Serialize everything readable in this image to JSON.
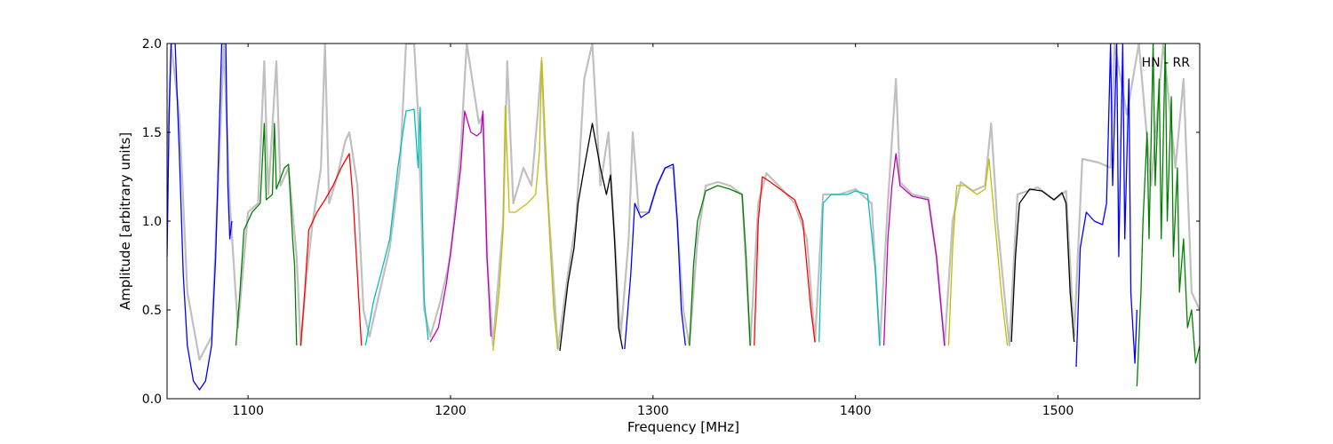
{
  "chart_data": {
    "type": "line",
    "title": "",
    "annotation": "HN - RR",
    "xlabel": "Frequency [MHz]",
    "ylabel": "Amplitude [arbitrary units]",
    "xlim": [
      1060,
      1570
    ],
    "ylim": [
      0,
      2.0
    ],
    "grid": false,
    "x_ticks": [
      1100,
      1200,
      1300,
      1400,
      1500
    ],
    "x_tick_labels": [
      "1100",
      "1200",
      "1300",
      "1400",
      "1500"
    ],
    "y_ticks": [
      0.0,
      0.5,
      1.0,
      1.5,
      2.0
    ],
    "y_tick_labels": [
      "0.0",
      "0.5",
      "1.0",
      "1.5",
      "2.0"
    ],
    "background_color": "#c0c0c0",
    "background": [
      [
        1060,
        1.25
      ],
      [
        1062,
        2.0
      ],
      [
        1066,
        1.6
      ],
      [
        1070,
        0.6
      ],
      [
        1076,
        0.22
      ],
      [
        1082,
        0.35
      ],
      [
        1086,
        1.4
      ],
      [
        1088,
        2.0
      ],
      [
        1091,
        1.1
      ],
      [
        1095,
        0.4
      ],
      [
        1100,
        1.05
      ],
      [
        1105,
        1.1
      ],
      [
        1108,
        1.9
      ],
      [
        1110,
        1.15
      ],
      [
        1114,
        1.9
      ],
      [
        1116,
        1.2
      ],
      [
        1120,
        1.3
      ],
      [
        1124,
        0.8
      ],
      [
        1126,
        0.3
      ],
      [
        1129,
        0.7
      ],
      [
        1132,
        1.0
      ],
      [
        1136,
        1.3
      ],
      [
        1138,
        2.0
      ],
      [
        1140,
        1.1
      ],
      [
        1144,
        1.25
      ],
      [
        1148,
        1.45
      ],
      [
        1150,
        1.5
      ],
      [
        1154,
        1.2
      ],
      [
        1157,
        0.5
      ],
      [
        1160,
        0.35
      ],
      [
        1165,
        0.6
      ],
      [
        1170,
        0.85
      ],
      [
        1175,
        1.3
      ],
      [
        1178,
        2.0
      ],
      [
        1182,
        2.0
      ],
      [
        1184,
        1.6
      ],
      [
        1187,
        0.5
      ],
      [
        1190,
        0.35
      ],
      [
        1195,
        0.55
      ],
      [
        1200,
        0.8
      ],
      [
        1205,
        1.4
      ],
      [
        1208,
        2.0
      ],
      [
        1212,
        1.7
      ],
      [
        1214,
        1.55
      ],
      [
        1216,
        1.6
      ],
      [
        1218,
        0.8
      ],
      [
        1221,
        0.3
      ],
      [
        1226,
        1.0
      ],
      [
        1228,
        1.9
      ],
      [
        1231,
        1.1
      ],
      [
        1236,
        1.3
      ],
      [
        1240,
        1.2
      ],
      [
        1243,
        1.6
      ],
      [
        1245,
        1.9
      ],
      [
        1247,
        1.3
      ],
      [
        1250,
        0.8
      ],
      [
        1253,
        0.28
      ],
      [
        1258,
        0.7
      ],
      [
        1262,
        1.0
      ],
      [
        1266,
        1.8
      ],
      [
        1270,
        2.0
      ],
      [
        1274,
        1.2
      ],
      [
        1278,
        1.5
      ],
      [
        1280,
        1.1
      ],
      [
        1284,
        0.35
      ],
      [
        1288,
        0.9
      ],
      [
        1290,
        1.5
      ],
      [
        1293,
        1.05
      ],
      [
        1298,
        1.05
      ],
      [
        1302,
        1.2
      ],
      [
        1306,
        1.3
      ],
      [
        1310,
        1.3
      ],
      [
        1315,
        0.5
      ],
      [
        1318,
        0.3
      ],
      [
        1322,
        0.9
      ],
      [
        1326,
        1.2
      ],
      [
        1332,
        1.22
      ],
      [
        1338,
        1.2
      ],
      [
        1344,
        1.15
      ],
      [
        1348,
        0.3
      ],
      [
        1352,
        1.1
      ],
      [
        1356,
        1.27
      ],
      [
        1362,
        1.2
      ],
      [
        1370,
        1.1
      ],
      [
        1376,
        0.9
      ],
      [
        1380,
        0.32
      ],
      [
        1384,
        1.15
      ],
      [
        1392,
        1.15
      ],
      [
        1400,
        1.18
      ],
      [
        1408,
        1.1
      ],
      [
        1412,
        0.3
      ],
      [
        1416,
        1.1
      ],
      [
        1420,
        1.8
      ],
      [
        1422,
        1.22
      ],
      [
        1428,
        1.15
      ],
      [
        1436,
        1.13
      ],
      [
        1440,
        0.8
      ],
      [
        1444,
        0.3
      ],
      [
        1448,
        1.0
      ],
      [
        1452,
        1.22
      ],
      [
        1458,
        1.17
      ],
      [
        1464,
        1.2
      ],
      [
        1467,
        1.55
      ],
      [
        1470,
        1.0
      ],
      [
        1476,
        0.3
      ],
      [
        1480,
        1.15
      ],
      [
        1490,
        1.19
      ],
      [
        1498,
        1.12
      ],
      [
        1504,
        1.17
      ],
      [
        1508,
        0.35
      ],
      [
        1512,
        1.35
      ],
      [
        1520,
        1.33
      ],
      [
        1526,
        1.3
      ],
      [
        1528,
        2.0
      ],
      [
        1534,
        1.6
      ],
      [
        1540,
        2.0
      ],
      [
        1546,
        1.2
      ],
      [
        1552,
        2.0
      ],
      [
        1558,
        1.3
      ],
      [
        1562,
        1.8
      ],
      [
        1566,
        0.6
      ],
      [
        1570,
        0.5
      ]
    ],
    "series": [
      {
        "color": "#0000ff",
        "points": [
          [
            1060,
            0.8
          ],
          [
            1061,
            1.6
          ],
          [
            1062,
            2.0
          ],
          [
            1064,
            2.0
          ],
          [
            1066,
            1.4
          ],
          [
            1068,
            0.7
          ],
          [
            1070,
            0.3
          ],
          [
            1073,
            0.1
          ],
          [
            1076,
            0.05
          ],
          [
            1079,
            0.1
          ],
          [
            1082,
            0.3
          ],
          [
            1084,
            0.8
          ],
          [
            1086,
            1.6
          ],
          [
            1087,
            2.0
          ],
          [
            1089,
            2.0
          ],
          [
            1090,
            1.2
          ],
          [
            1091,
            0.9
          ],
          [
            1092,
            1.0
          ]
        ]
      },
      {
        "color": "#008000",
        "points": [
          [
            1094,
            0.3
          ],
          [
            1096,
            0.6
          ],
          [
            1098,
            0.95
          ],
          [
            1102,
            1.05
          ],
          [
            1106,
            1.1
          ],
          [
            1108,
            1.55
          ],
          [
            1109,
            1.12
          ],
          [
            1112,
            1.15
          ],
          [
            1113,
            1.55
          ],
          [
            1114,
            1.18
          ],
          [
            1118,
            1.3
          ],
          [
            1120,
            1.32
          ],
          [
            1122,
            0.9
          ],
          [
            1123,
            0.75
          ],
          [
            1124,
            0.3
          ]
        ]
      },
      {
        "color": "#ff0000",
        "points": [
          [
            1126,
            0.3
          ],
          [
            1128,
            0.6
          ],
          [
            1130,
            0.95
          ],
          [
            1134,
            1.05
          ],
          [
            1138,
            1.12
          ],
          [
            1142,
            1.2
          ],
          [
            1146,
            1.3
          ],
          [
            1150,
            1.38
          ],
          [
            1152,
            1.1
          ],
          [
            1154,
            0.7
          ],
          [
            1156,
            0.3
          ]
        ]
      },
      {
        "color": "#00bfbf",
        "points": [
          [
            1158,
            0.3
          ],
          [
            1162,
            0.55
          ],
          [
            1166,
            0.72
          ],
          [
            1170,
            0.9
          ],
          [
            1174,
            1.3
          ],
          [
            1178,
            1.62
          ],
          [
            1182,
            1.63
          ],
          [
            1184,
            1.3
          ],
          [
            1185,
            1.64
          ],
          [
            1187,
            0.55
          ],
          [
            1189,
            0.33
          ]
        ]
      },
      {
        "color": "#bf00bf",
        "points": [
          [
            1190,
            0.32
          ],
          [
            1194,
            0.4
          ],
          [
            1198,
            0.65
          ],
          [
            1202,
            1.0
          ],
          [
            1205,
            1.3
          ],
          [
            1207,
            1.62
          ],
          [
            1210,
            1.5
          ],
          [
            1213,
            1.48
          ],
          [
            1215,
            1.5
          ],
          [
            1216,
            1.62
          ],
          [
            1218,
            0.8
          ],
          [
            1220,
            0.35
          ]
        ]
      },
      {
        "color": "#bfbf00",
        "points": [
          [
            1221,
            0.27
          ],
          [
            1224,
            0.6
          ],
          [
            1226,
            0.95
          ],
          [
            1227,
            1.65
          ],
          [
            1229,
            1.05
          ],
          [
            1232,
            1.05
          ],
          [
            1238,
            1.1
          ],
          [
            1242,
            1.15
          ],
          [
            1244,
            1.4
          ],
          [
            1245,
            1.92
          ],
          [
            1247,
            1.4
          ],
          [
            1249,
            0.9
          ],
          [
            1251,
            0.5
          ],
          [
            1253,
            0.28
          ]
        ]
      },
      {
        "color": "#000000",
        "points": [
          [
            1254,
            0.27
          ],
          [
            1258,
            0.65
          ],
          [
            1261,
            0.85
          ],
          [
            1263,
            1.1
          ],
          [
            1266,
            1.3
          ],
          [
            1270,
            1.55
          ],
          [
            1274,
            1.3
          ],
          [
            1277,
            1.15
          ],
          [
            1279,
            1.26
          ],
          [
            1281,
            0.9
          ],
          [
            1283,
            0.4
          ],
          [
            1285,
            0.28
          ]
        ]
      },
      {
        "color": "#0000ff",
        "points": [
          [
            1286,
            0.28
          ],
          [
            1289,
            0.7
          ],
          [
            1291,
            1.1
          ],
          [
            1294,
            1.02
          ],
          [
            1298,
            1.05
          ],
          [
            1302,
            1.2
          ],
          [
            1306,
            1.3
          ],
          [
            1310,
            1.32
          ],
          [
            1312,
            1.0
          ],
          [
            1314,
            0.5
          ],
          [
            1316,
            0.3
          ]
        ]
      },
      {
        "color": "#008000",
        "points": [
          [
            1318,
            0.3
          ],
          [
            1320,
            0.75
          ],
          [
            1322,
            1.0
          ],
          [
            1326,
            1.17
          ],
          [
            1332,
            1.2
          ],
          [
            1338,
            1.18
          ],
          [
            1344,
            1.15
          ],
          [
            1346,
            0.8
          ],
          [
            1348,
            0.3
          ]
        ]
      },
      {
        "color": "#ff0000",
        "points": [
          [
            1350,
            0.3
          ],
          [
            1352,
            1.0
          ],
          [
            1354,
            1.25
          ],
          [
            1358,
            1.22
          ],
          [
            1364,
            1.17
          ],
          [
            1370,
            1.12
          ],
          [
            1374,
            1.0
          ],
          [
            1378,
            0.5
          ],
          [
            1380,
            0.32
          ]
        ]
      },
      {
        "color": "#00bfbf",
        "points": [
          [
            1382,
            0.32
          ],
          [
            1384,
            1.1
          ],
          [
            1388,
            1.15
          ],
          [
            1396,
            1.15
          ],
          [
            1400,
            1.17
          ],
          [
            1406,
            1.15
          ],
          [
            1410,
            0.7
          ],
          [
            1412,
            0.3
          ]
        ]
      },
      {
        "color": "#bf00bf",
        "points": [
          [
            1414,
            0.3
          ],
          [
            1416,
            0.9
          ],
          [
            1418,
            1.2
          ],
          [
            1420,
            1.38
          ],
          [
            1422,
            1.2
          ],
          [
            1428,
            1.14
          ],
          [
            1436,
            1.12
          ],
          [
            1440,
            0.8
          ],
          [
            1444,
            0.3
          ]
        ]
      },
      {
        "color": "#bfbf00",
        "points": [
          [
            1446,
            0.3
          ],
          [
            1448,
            0.85
          ],
          [
            1450,
            1.2
          ],
          [
            1454,
            1.2
          ],
          [
            1460,
            1.15
          ],
          [
            1464,
            1.18
          ],
          [
            1466,
            1.35
          ],
          [
            1468,
            1.1
          ],
          [
            1472,
            0.6
          ],
          [
            1475,
            0.3
          ]
        ]
      },
      {
        "color": "#000000",
        "points": [
          [
            1477,
            0.32
          ],
          [
            1479,
            0.8
          ],
          [
            1481,
            1.1
          ],
          [
            1486,
            1.18
          ],
          [
            1492,
            1.17
          ],
          [
            1498,
            1.12
          ],
          [
            1502,
            1.16
          ],
          [
            1504,
            1.1
          ],
          [
            1506,
            0.6
          ],
          [
            1508,
            0.32
          ]
        ]
      },
      {
        "color": "#0000ff",
        "points": [
          [
            1509,
            0.18
          ],
          [
            1511,
            0.85
          ],
          [
            1514,
            1.05
          ],
          [
            1518,
            1.0
          ],
          [
            1522,
            0.98
          ],
          [
            1524,
            1.1
          ],
          [
            1526,
            2.0
          ],
          [
            1527,
            1.2
          ],
          [
            1529,
            2.0
          ],
          [
            1530,
            0.8
          ],
          [
            1532,
            2.0
          ],
          [
            1533,
            0.9
          ],
          [
            1535,
            1.8
          ],
          [
            1536,
            0.6
          ],
          [
            1538,
            0.2
          ],
          [
            1539,
            0.5
          ]
        ]
      },
      {
        "color": "#008000",
        "points": [
          [
            1539,
            0.07
          ],
          [
            1541,
            0.6
          ],
          [
            1542,
            1.0
          ],
          [
            1544,
            1.5
          ],
          [
            1545,
            0.9
          ],
          [
            1547,
            2.0
          ],
          [
            1548,
            1.2
          ],
          [
            1550,
            1.8
          ],
          [
            1551,
            0.9
          ],
          [
            1553,
            2.0
          ],
          [
            1554,
            1.0
          ],
          [
            1556,
            1.7
          ],
          [
            1557,
            0.8
          ],
          [
            1559,
            1.3
          ],
          [
            1560,
            0.6
          ],
          [
            1562,
            0.9
          ],
          [
            1564,
            0.4
          ],
          [
            1566,
            0.5
          ],
          [
            1568,
            0.2
          ],
          [
            1570,
            0.3
          ]
        ]
      }
    ]
  }
}
